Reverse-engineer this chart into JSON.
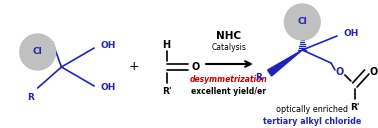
{
  "bg_color": "#ffffff",
  "blue": "#2222bb",
  "red": "#cc0000",
  "black": "#000000",
  "gray_circle": "#c0c0c0",
  "nhc_text": "NHC",
  "catalysis_text": "Catalysis",
  "desym_text": "desymmetrization",
  "yield_text": "excellent yield/er",
  "optically_text": "optically enriched",
  "tertiary_text": "tertiary alkyl chloride",
  "fig_w": 3.78,
  "fig_h": 1.28,
  "dpi": 100
}
